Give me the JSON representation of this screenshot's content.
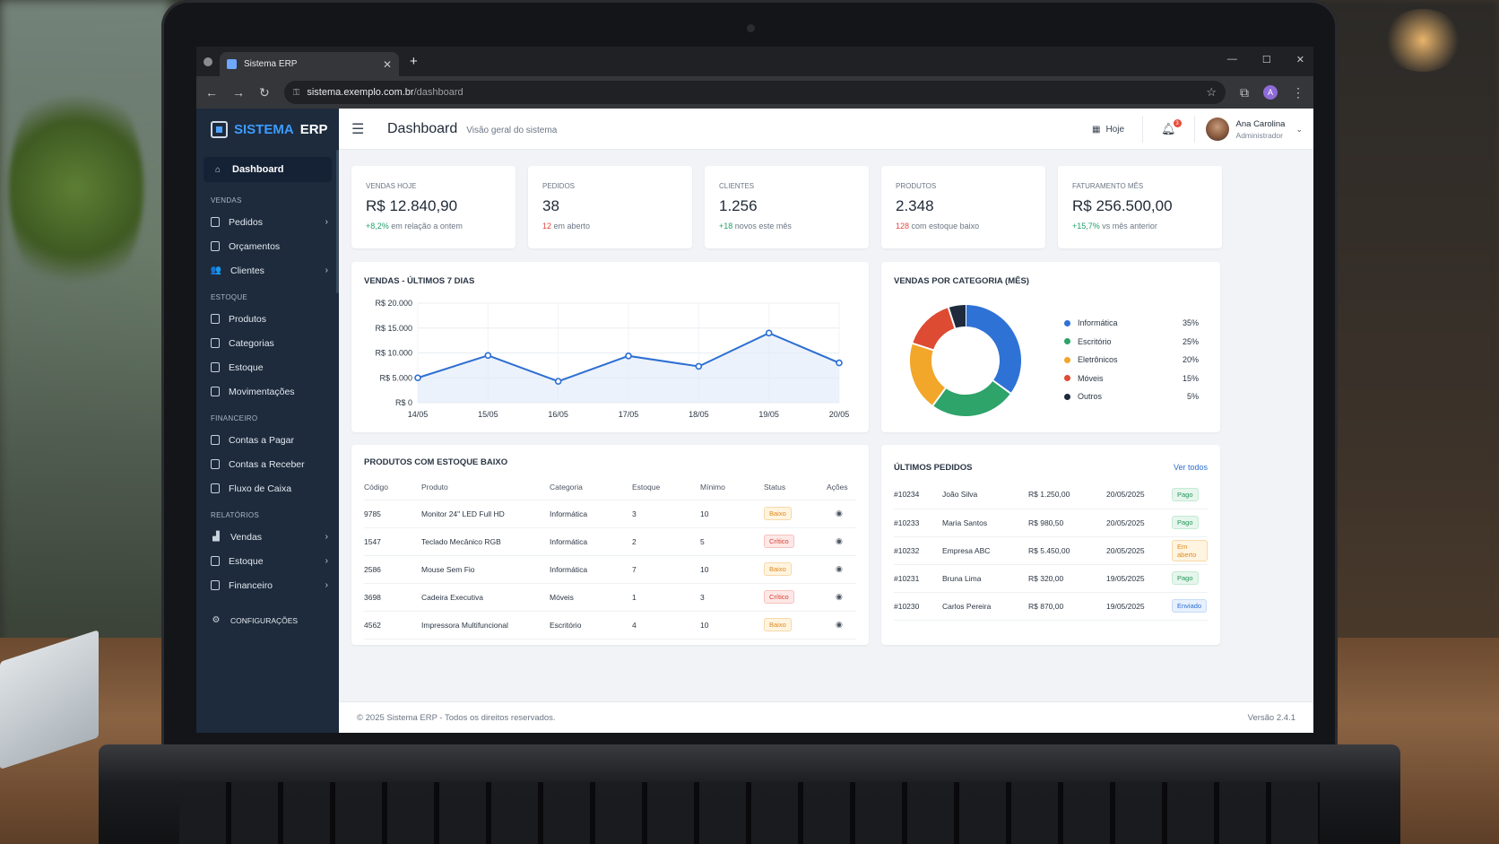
{
  "browser": {
    "tab_title": "Sistema ERP",
    "url_host": "sistema.exemplo.com.br",
    "url_path": "/dashboard",
    "profile_initial": "A"
  },
  "brand": {
    "name_accent": "SISTEMA",
    "name_rest": "ERP"
  },
  "sidebar": {
    "active": {
      "label": "Dashboard",
      "icon": "home-icon"
    },
    "sections": [
      {
        "title": "VENDAS",
        "items": [
          {
            "label": "Pedidos",
            "icon": "clipboard-icon",
            "has_children": true
          },
          {
            "label": "Orçamentos",
            "icon": "document-icon",
            "has_children": false
          },
          {
            "label": "Clientes",
            "icon": "users-icon",
            "has_children": true
          }
        ]
      },
      {
        "title": "ESTOQUE",
        "items": [
          {
            "label": "Produtos",
            "icon": "box-icon",
            "has_children": false
          },
          {
            "label": "Categorias",
            "icon": "folder-icon",
            "has_children": false
          },
          {
            "label": "Estoque",
            "icon": "archive-icon",
            "has_children": false
          },
          {
            "label": "Movimentações",
            "icon": "list-icon",
            "has_children": false
          }
        ]
      },
      {
        "title": "FINANCEIRO",
        "items": [
          {
            "label": "Contas a Pagar",
            "icon": "bill-icon",
            "has_children": false
          },
          {
            "label": "Contas a Receber",
            "icon": "bill-icon",
            "has_children": false
          },
          {
            "label": "Fluxo de Caixa",
            "icon": "cash-icon",
            "has_children": false
          }
        ]
      },
      {
        "title": "RELATÓRIOS",
        "items": [
          {
            "label": "Vendas",
            "icon": "bar-chart-icon",
            "has_children": true
          },
          {
            "label": "Estoque",
            "icon": "report-icon",
            "has_children": true
          },
          {
            "label": "Financeiro",
            "icon": "report-icon",
            "has_children": true
          }
        ]
      }
    ],
    "settings": {
      "label": "CONFIGURAÇÕES",
      "icon": "gear-icon"
    }
  },
  "header": {
    "title": "Dashboard",
    "subtitle": "Visão geral do sistema",
    "today_label": "Hoje",
    "notifications": "3",
    "user_name": "Ana Carolina",
    "user_role": "Administrador"
  },
  "kpis": [
    {
      "label": "VENDAS HOJE",
      "value": "R$ 12.840,90",
      "delta": "+8,2%",
      "note": "em relação a ontem",
      "tone": "pos"
    },
    {
      "label": "PEDIDOS",
      "value": "38",
      "delta": "12",
      "note": "em aberto",
      "tone": "neg"
    },
    {
      "label": "CLIENTES",
      "value": "1.256",
      "delta": "+18",
      "note": "novos este mês",
      "tone": "pos"
    },
    {
      "label": "PRODUTOS",
      "value": "2.348",
      "delta": "128",
      "note": "com estoque baixo",
      "tone": "neg"
    },
    {
      "label": "FATURAMENTO MÊS",
      "value": "R$ 256.500,00",
      "delta": "+15,7%",
      "note": "vs mês anterior",
      "tone": "pos"
    }
  ],
  "chart_data": [
    {
      "type": "line",
      "title": "VENDAS - ÚLTIMOS 7 DIAS",
      "x": [
        "14/05",
        "15/05",
        "16/05",
        "17/05",
        "18/05",
        "19/05",
        "20/05"
      ],
      "series": [
        {
          "values": [
            5000,
            9500,
            4300,
            9400,
            7300,
            14000,
            8000
          ]
        }
      ],
      "ylim": [
        0,
        20000
      ],
      "yticks": [
        "R$ 0",
        "R$ 5.000",
        "R$ 10.000",
        "R$ 15.000",
        "R$ 20.000"
      ],
      "grid": true,
      "color": "#2d6fd2"
    },
    {
      "type": "pie",
      "title": "VENDAS POR CATEGORIA (MÊS)",
      "categories": [
        "Informática",
        "Escritório",
        "Eletrônicos",
        "Móveis",
        "Outros"
      ],
      "values": [
        35,
        25,
        20,
        15,
        5
      ],
      "labels": [
        "35%",
        "25%",
        "20%",
        "15%",
        "5%"
      ],
      "colors": [
        "#2f72d6",
        "#2ea36a",
        "#f2a62a",
        "#de4b33",
        "#1f2a3d"
      ],
      "legend": "right"
    }
  ],
  "stock": {
    "title": "PRODUTOS COM ESTOQUE BAIXO",
    "columns": [
      "Código",
      "Produto",
      "Categoria",
      "Estoque",
      "Mínimo",
      "Status",
      "Ações"
    ],
    "rows": [
      {
        "code": "9785",
        "product": "Monitor 24\" LED Full HD",
        "category": "Informática",
        "stock": "3",
        "min": "10",
        "status": "Baixo"
      },
      {
        "code": "1547",
        "product": "Teclado Mecânico RGB",
        "category": "Informática",
        "stock": "2",
        "min": "5",
        "status": "Crítico"
      },
      {
        "code": "2586",
        "product": "Mouse Sem Fio",
        "category": "Informática",
        "stock": "7",
        "min": "10",
        "status": "Baixo"
      },
      {
        "code": "3698",
        "product": "Cadeira Executiva",
        "category": "Móveis",
        "stock": "1",
        "min": "3",
        "status": "Crítico"
      },
      {
        "code": "4562",
        "product": "Impressora Multifuncional",
        "category": "Escritório",
        "stock": "4",
        "min": "10",
        "status": "Baixo"
      }
    ]
  },
  "orders": {
    "title": "ÚLTIMOS PEDIDOS",
    "link": "Ver todos",
    "rows": [
      {
        "id": "#10234",
        "client": "João Silva",
        "amount": "R$ 1.250,00",
        "date": "20/05/2025",
        "status": "Pago"
      },
      {
        "id": "#10233",
        "client": "Maria Santos",
        "amount": "R$ 980,50",
        "date": "20/05/2025",
        "status": "Pago"
      },
      {
        "id": "#10232",
        "client": "Empresa ABC",
        "amount": "R$ 5.450,00",
        "date": "20/05/2025",
        "status": "Em aberto"
      },
      {
        "id": "#10231",
        "client": "Bruna Lima",
        "amount": "R$ 320,00",
        "date": "19/05/2025",
        "status": "Pago"
      },
      {
        "id": "#10230",
        "client": "Carlos Pereira",
        "amount": "R$ 870,00",
        "date": "19/05/2025",
        "status": "Enviado"
      }
    ]
  },
  "footer": {
    "copyright": "© 2025 Sistema ERP - Todos os direitos reservados.",
    "version": "Versão 2.4.1"
  }
}
